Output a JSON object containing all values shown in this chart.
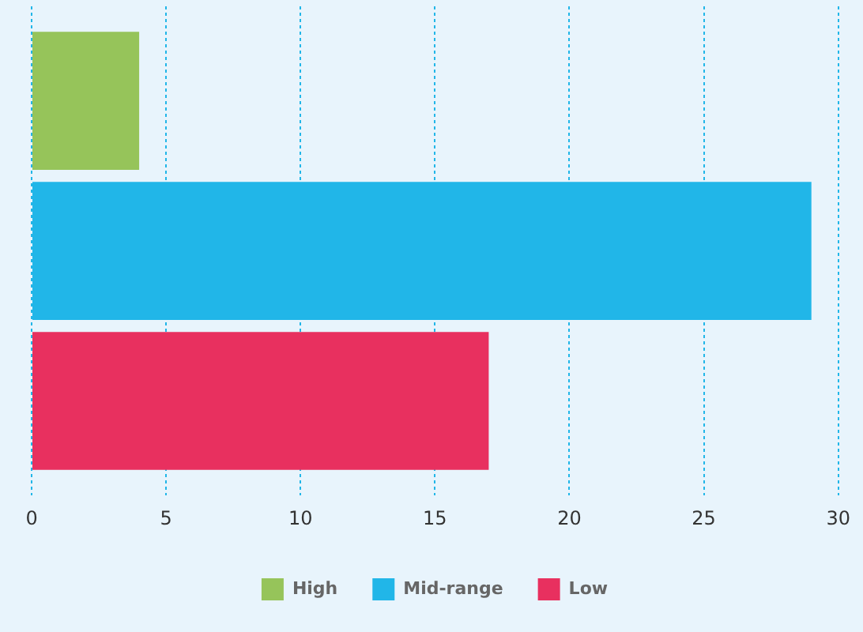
{
  "chart_data": {
    "type": "bar",
    "orientation": "horizontal",
    "categories": [
      null
    ],
    "series": [
      {
        "name": "High",
        "color": "#96c45a",
        "values": [
          4
        ]
      },
      {
        "name": "Mid-range",
        "color": "#21b6e8",
        "values": [
          29
        ]
      },
      {
        "name": "Low",
        "color": "#e8305f",
        "values": [
          17
        ]
      }
    ],
    "xlim": [
      0,
      30
    ],
    "xticks": [
      0,
      5,
      10,
      15,
      20,
      25,
      30
    ],
    "grid": "x",
    "legend": "bottom"
  }
}
